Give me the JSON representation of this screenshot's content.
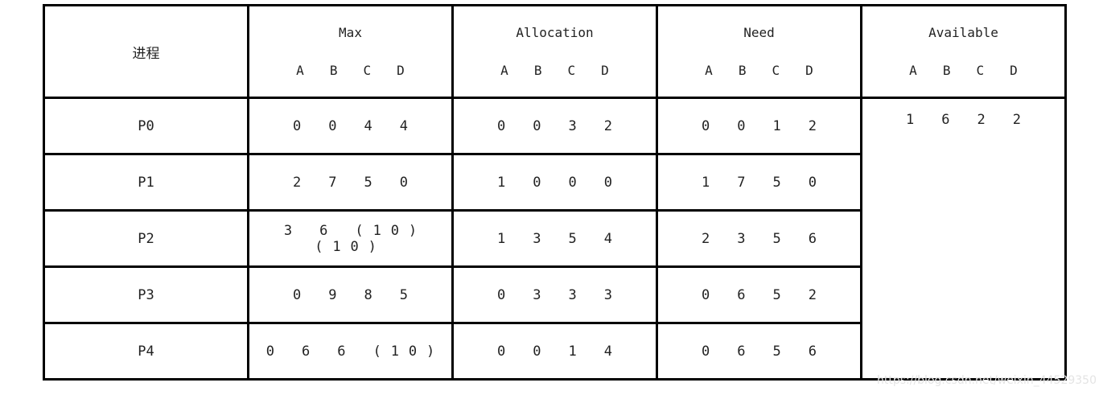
{
  "table": {
    "header": {
      "process": "进程",
      "columns": [
        {
          "name": "Max",
          "sub": "A B C D"
        },
        {
          "name": "Allocation",
          "sub": "A B C D"
        },
        {
          "name": "Need",
          "sub": "A B C D"
        },
        {
          "name": "Available",
          "sub": "A B C D"
        }
      ]
    },
    "rows": [
      {
        "process": "P0",
        "max": "0 0 4 4",
        "allocation": "0 0 3 2",
        "need": "0 0 1 2"
      },
      {
        "process": "P1",
        "max": "2 7 5 0",
        "allocation": "1 0 0 0",
        "need": "1 7 5 0"
      },
      {
        "process": "P2",
        "max": "3 6 (10) (10)",
        "allocation": "1 3 5 4",
        "need": "2 3 5 6"
      },
      {
        "process": "P3",
        "max": "0 9 8 5",
        "allocation": "0 3 3 3",
        "need": "0 6 5 2"
      },
      {
        "process": "P4",
        "max": "0 6 6 (10)",
        "allocation": "0 0 1 4",
        "need": "0 6 5 6"
      }
    ],
    "available": "1 6 2 2"
  },
  "watermark": "https://blog.csdn.net/weixin_44529350"
}
